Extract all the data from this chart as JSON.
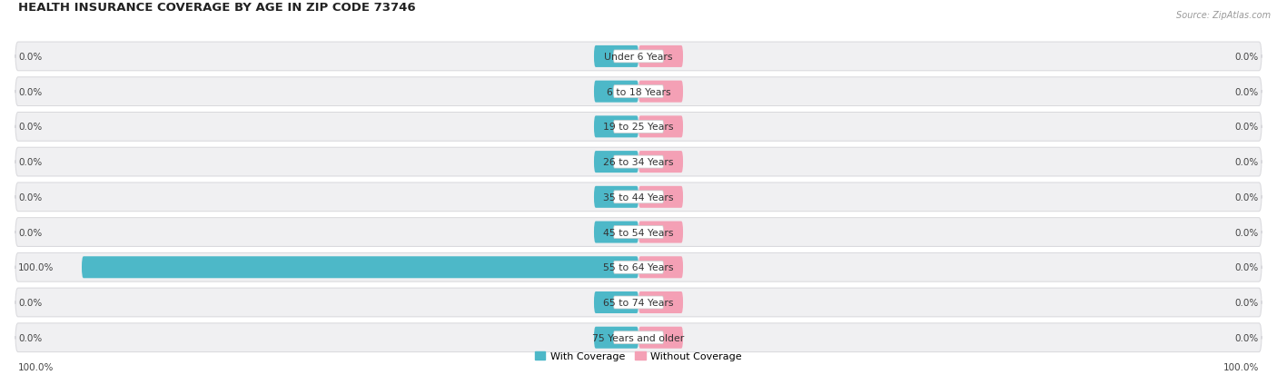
{
  "title": "HEALTH INSURANCE COVERAGE BY AGE IN ZIP CODE 73746",
  "source_text": "Source: ZipAtlas.com",
  "categories": [
    "Under 6 Years",
    "6 to 18 Years",
    "19 to 25 Years",
    "26 to 34 Years",
    "35 to 44 Years",
    "45 to 54 Years",
    "55 to 64 Years",
    "65 to 74 Years",
    "75 Years and older"
  ],
  "with_coverage": [
    0.0,
    0.0,
    0.0,
    0.0,
    0.0,
    0.0,
    100.0,
    0.0,
    0.0
  ],
  "without_coverage": [
    0.0,
    0.0,
    0.0,
    0.0,
    0.0,
    0.0,
    0.0,
    0.0,
    0.0
  ],
  "color_with": "#4db8c8",
  "color_without": "#f4a0b5",
  "row_bg_color": "#f0f0f2",
  "row_edge_color": "#d8d8dc",
  "label_bg_color": "#ffffff",
  "label_color": "#333333",
  "value_label_color": "#444444",
  "title_color": "#222222",
  "source_color": "#999999",
  "axis_label_left": "100.0%",
  "axis_label_right": "100.0%",
  "legend_with": "With Coverage",
  "legend_without": "Without Coverage",
  "max_val": 100.0,
  "stub_pct": 8.0,
  "figsize": [
    14.06,
    4.14
  ],
  "dpi": 100
}
